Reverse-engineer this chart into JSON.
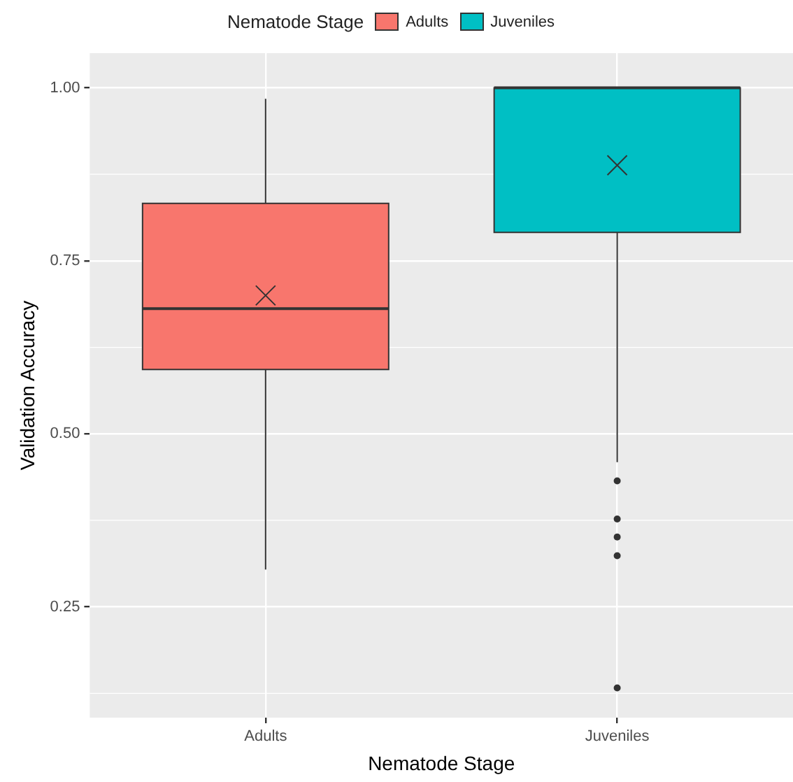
{
  "chart_data": {
    "type": "box",
    "xlabel": "Nematode Stage",
    "ylabel": "Validation Accuracy",
    "legend_title": "Nematode Stage",
    "legend": "top",
    "grid": true,
    "categories": [
      "Adults",
      "Juveniles"
    ],
    "ylim": [
      0.09,
      1.05
    ],
    "yticks": [
      {
        "value": 0.25,
        "label": "0.25"
      },
      {
        "value": 0.5,
        "label": "0.50"
      },
      {
        "value": 0.75,
        "label": "0.75"
      },
      {
        "value": 1,
        "label": "1.00"
      }
    ],
    "series": [
      {
        "name": "Adults",
        "color": "#f8766d",
        "boxes": [
          {
            "low": 0.304,
            "q1": 0.593,
            "median": 0.681,
            "q3": 0.833,
            "high": 0.984,
            "mean": 0.7
          },
          null
        ]
      },
      {
        "name": "Juveniles",
        "color": "#00bfc4",
        "boxes": [
          null,
          {
            "low": 0.459,
            "q1": 0.791,
            "median": 1.0,
            "q3": 1.0,
            "high": 1.0,
            "mean": 0.888,
            "outliers": [
              0.432,
              0.377,
              0.351,
              0.324,
              0.133
            ]
          }
        ]
      }
    ]
  }
}
